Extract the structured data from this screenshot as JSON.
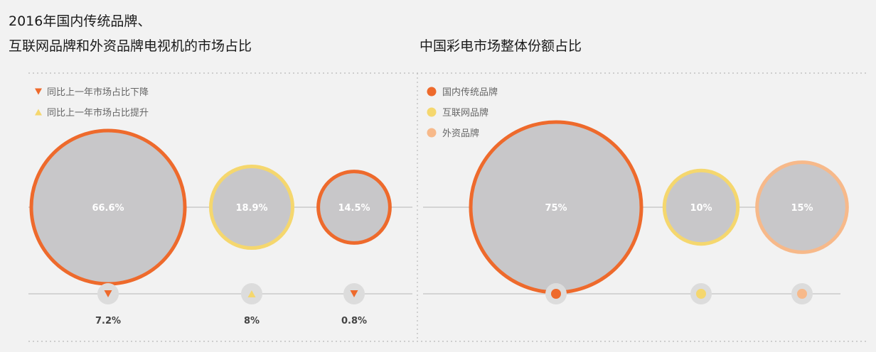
{
  "titles": {
    "left_line1": "2016年国内传统品牌、",
    "left_line2": "互联网品牌和外资品牌电视机的市场占比",
    "right": "中国彩电市场整体份额占比"
  },
  "colors": {
    "traditional": "#ee6a2c",
    "internet": "#f5d76e",
    "foreign": "#f7b98a",
    "bubble_fill": "#c8c7c9",
    "badge_fill": "#dcdcdc",
    "up_marker": "#f5d76e",
    "down_marker": "#ee6a2c"
  },
  "chart_data": [
    {
      "type": "bubble",
      "title": "2016年国内传统品牌、互联网品牌和外资品牌电视机的市场占比",
      "legend": [
        {
          "label": "同比上一年市场占比下降",
          "marker": "down-triangle",
          "color": "#ee6a2c"
        },
        {
          "label": "同比上一年市场占比提升",
          "marker": "up-triangle",
          "color": "#f5d76e"
        }
      ],
      "bubbles": [
        {
          "value": 66.6,
          "label": "66.6%",
          "ring_color": "#ee6a2c",
          "change_label": "7.2%",
          "direction": "down"
        },
        {
          "value": 18.9,
          "label": "18.9%",
          "ring_color": "#f5d76e",
          "change_label": "8%",
          "direction": "up"
        },
        {
          "value": 14.5,
          "label": "14.5%",
          "ring_color": "#ee6a2c",
          "change_label": "0.8%",
          "direction": "down"
        }
      ]
    },
    {
      "type": "bubble",
      "title": "中国彩电市场整体份额占比",
      "legend": [
        {
          "label": "国内传统品牌",
          "marker": "dot",
          "color": "#ee6a2c"
        },
        {
          "label": "互联网品牌",
          "marker": "dot",
          "color": "#f5d76e"
        },
        {
          "label": "外资品牌",
          "marker": "dot",
          "color": "#f7b98a"
        }
      ],
      "bubbles": [
        {
          "value": 75,
          "label": "75%",
          "ring_color": "#ee6a2c",
          "badge_color": "#ee6a2c"
        },
        {
          "value": 10,
          "label": "10%",
          "ring_color": "#f5d76e",
          "badge_color": "#f5d76e"
        },
        {
          "value": 15,
          "label": "15%",
          "ring_color": "#f7b98a",
          "badge_color": "#f7b98a"
        }
      ]
    }
  ]
}
